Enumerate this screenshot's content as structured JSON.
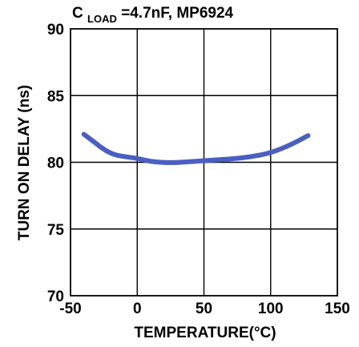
{
  "chart_data": {
    "type": "line",
    "title": {
      "prefix": "C",
      "subscript": "LOAD",
      "suffix": "=4.7nF, MP6924"
    },
    "xlabel": "TEMPERATURE(°C)",
    "ylabel": "TURN ON DELAY (ns)",
    "xlim": [
      -50,
      150
    ],
    "ylim": [
      70,
      90
    ],
    "xticks": [
      -50,
      0,
      50,
      100,
      150
    ],
    "yticks": [
      70,
      75,
      80,
      85,
      90
    ],
    "xtick_labels": [
      "-50",
      "0",
      "50",
      "100",
      "150"
    ],
    "ytick_labels": [
      "70",
      "75",
      "80",
      "85",
      "90"
    ],
    "grid": true,
    "series": [
      {
        "color": "#4a5fc1",
        "points": [
          {
            "x": -40,
            "y": 82.1
          },
          {
            "x": -32,
            "y": 81.5
          },
          {
            "x": -25,
            "y": 80.95
          },
          {
            "x": -17,
            "y": 80.55
          },
          {
            "x": -8,
            "y": 80.4
          },
          {
            "x": 0,
            "y": 80.3
          },
          {
            "x": 10,
            "y": 80.05
          },
          {
            "x": 25,
            "y": 79.95
          },
          {
            "x": 40,
            "y": 80.05
          },
          {
            "x": 55,
            "y": 80.15
          },
          {
            "x": 70,
            "y": 80.25
          },
          {
            "x": 85,
            "y": 80.4
          },
          {
            "x": 100,
            "y": 80.7
          },
          {
            "x": 115,
            "y": 81.3
          },
          {
            "x": 128,
            "y": 82.0
          }
        ]
      }
    ]
  }
}
